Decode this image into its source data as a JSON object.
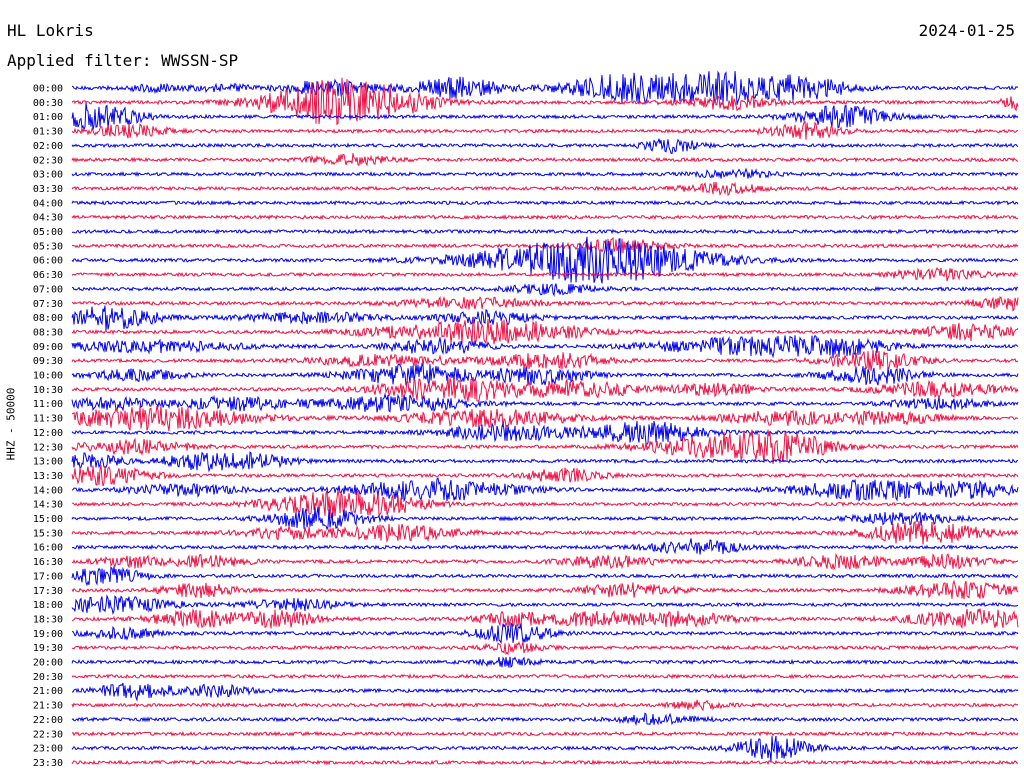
{
  "header": {
    "station": "HL Lokris",
    "date": "2024-01-25",
    "filter": "Applied filter: WWSSN-SP"
  },
  "chart_data": {
    "type": "line",
    "chart_kind": "helicorder",
    "ylabel": "HHZ - 50000",
    "row_labels": [
      "00:00",
      "00:30",
      "01:00",
      "01:30",
      "02:00",
      "02:30",
      "03:00",
      "03:30",
      "04:00",
      "04:30",
      "05:00",
      "05:30",
      "06:00",
      "06:30",
      "07:00",
      "07:30",
      "08:00",
      "08:30",
      "09:00",
      "09:30",
      "10:00",
      "10:30",
      "11:00",
      "11:30",
      "12:00",
      "12:30",
      "13:00",
      "13:30",
      "14:00",
      "14:30",
      "15:00",
      "15:30",
      "16:00",
      "16:30",
      "17:00",
      "17:30",
      "18:00",
      "18:30",
      "19:00",
      "19:30",
      "20:00",
      "20:30",
      "21:00",
      "21:30",
      "22:00",
      "22:30",
      "23:00",
      "23:30"
    ],
    "row_minutes": 15,
    "trace_colors": [
      "#0000ee",
      "#ee1144"
    ],
    "noise_amplitude": 0.25,
    "events": [
      {
        "row": 0,
        "minute": 1.3,
        "amp": 0.6,
        "dur": 0.6
      },
      {
        "row": 0,
        "minute": 2.4,
        "amp": 0.5,
        "dur": 0.6
      },
      {
        "row": 0,
        "minute": 4.1,
        "amp": 1.2,
        "dur": 1.0
      },
      {
        "row": 0,
        "minute": 6.1,
        "amp": 1.5,
        "dur": 1.0
      },
      {
        "row": 0,
        "minute": 8.7,
        "amp": 2.0,
        "dur": 1.2
      },
      {
        "row": 0,
        "minute": 10.2,
        "amp": 2.6,
        "dur": 1.2
      },
      {
        "row": 0,
        "minute": 11.6,
        "amp": 1.6,
        "dur": 1.0
      },
      {
        "row": 1,
        "minute": 4.1,
        "amp": 2.4,
        "dur": 1.6
      },
      {
        "row": 1,
        "minute": 4.7,
        "amp": 1.5,
        "dur": 1.4
      },
      {
        "row": 1,
        "minute": 10.4,
        "amp": 1.0,
        "dur": 1.0
      },
      {
        "row": 1,
        "minute": 15.0,
        "amp": 1.0,
        "dur": 0.4
      },
      {
        "row": 2,
        "minute": 0.1,
        "amp": 1.2,
        "dur": 0.8
      },
      {
        "row": 2,
        "minute": 0.6,
        "amp": 1.2,
        "dur": 0.8
      },
      {
        "row": 2,
        "minute": 12.2,
        "amp": 1.6,
        "dur": 1.0
      },
      {
        "row": 3,
        "minute": 0.9,
        "amp": 1.0,
        "dur": 0.8
      },
      {
        "row": 3,
        "minute": 11.6,
        "amp": 1.2,
        "dur": 0.8
      },
      {
        "row": 4,
        "minute": 9.5,
        "amp": 1.0,
        "dur": 0.6
      },
      {
        "row": 5,
        "minute": 4.4,
        "amp": 0.8,
        "dur": 0.8
      },
      {
        "row": 6,
        "minute": 10.5,
        "amp": 0.6,
        "dur": 0.8
      },
      {
        "row": 7,
        "minute": 10.3,
        "amp": 0.8,
        "dur": 0.8
      },
      {
        "row": 11,
        "minute": 8.7,
        "amp": 1.0,
        "dur": 1.0
      },
      {
        "row": 12,
        "minute": 7.6,
        "amp": 1.8,
        "dur": 2.2
      },
      {
        "row": 12,
        "minute": 8.8,
        "amp": 2.2,
        "dur": 2.0
      },
      {
        "row": 13,
        "minute": 13.7,
        "amp": 0.8,
        "dur": 1.0
      },
      {
        "row": 14,
        "minute": 7.6,
        "amp": 0.7,
        "dur": 1.0
      },
      {
        "row": 15,
        "minute": 6.3,
        "amp": 0.8,
        "dur": 1.4
      },
      {
        "row": 15,
        "minute": 14.9,
        "amp": 1.0,
        "dur": 0.8
      },
      {
        "row": 16,
        "minute": 0.6,
        "amp": 1.8,
        "dur": 1.0
      },
      {
        "row": 16,
        "minute": 3.8,
        "amp": 0.8,
        "dur": 1.4
      },
      {
        "row": 16,
        "minute": 6.6,
        "amp": 1.0,
        "dur": 1.0
      },
      {
        "row": 17,
        "minute": 6.0,
        "amp": 1.0,
        "dur": 2.0
      },
      {
        "row": 17,
        "minute": 7.0,
        "amp": 1.2,
        "dur": 1.6
      },
      {
        "row": 17,
        "minute": 14.2,
        "amp": 1.2,
        "dur": 1.0
      },
      {
        "row": 18,
        "minute": 1.2,
        "amp": 0.8,
        "dur": 2.0
      },
      {
        "row": 18,
        "minute": 5.8,
        "amp": 1.2,
        "dur": 1.0
      },
      {
        "row": 18,
        "minute": 10.6,
        "amp": 1.2,
        "dur": 2.0
      },
      {
        "row": 18,
        "minute": 12.1,
        "amp": 1.2,
        "dur": 1.2
      },
      {
        "row": 19,
        "minute": 5.0,
        "amp": 0.8,
        "dur": 1.6
      },
      {
        "row": 19,
        "minute": 7.6,
        "amp": 1.2,
        "dur": 1.2
      },
      {
        "row": 19,
        "minute": 12.7,
        "amp": 1.4,
        "dur": 1.0
      },
      {
        "row": 20,
        "minute": 1.0,
        "amp": 0.8,
        "dur": 1.0
      },
      {
        "row": 20,
        "minute": 5.4,
        "amp": 1.6,
        "dur": 1.4
      },
      {
        "row": 20,
        "minute": 7.4,
        "amp": 1.4,
        "dur": 1.0
      },
      {
        "row": 20,
        "minute": 12.7,
        "amp": 1.4,
        "dur": 1.0
      },
      {
        "row": 21,
        "minute": 6.0,
        "amp": 1.8,
        "dur": 1.6
      },
      {
        "row": 21,
        "minute": 8.1,
        "amp": 1.2,
        "dur": 1.2
      },
      {
        "row": 21,
        "minute": 10.2,
        "amp": 0.8,
        "dur": 1.0
      },
      {
        "row": 21,
        "minute": 13.7,
        "amp": 1.0,
        "dur": 1.4
      },
      {
        "row": 22,
        "minute": 0.6,
        "amp": 0.8,
        "dur": 1.0
      },
      {
        "row": 22,
        "minute": 2.6,
        "amp": 1.0,
        "dur": 1.2
      },
      {
        "row": 22,
        "minute": 5.1,
        "amp": 1.2,
        "dur": 1.6
      },
      {
        "row": 22,
        "minute": 13.7,
        "amp": 0.8,
        "dur": 1.0
      },
      {
        "row": 23,
        "minute": 1.3,
        "amp": 1.8,
        "dur": 2.0
      },
      {
        "row": 23,
        "minute": 6.6,
        "amp": 1.2,
        "dur": 1.8
      },
      {
        "row": 23,
        "minute": 11.3,
        "amp": 1.0,
        "dur": 1.4
      },
      {
        "row": 23,
        "minute": 13.0,
        "amp": 0.8,
        "dur": 1.2
      },
      {
        "row": 24,
        "minute": 6.9,
        "amp": 1.2,
        "dur": 1.4
      },
      {
        "row": 24,
        "minute": 9.1,
        "amp": 1.6,
        "dur": 1.2
      },
      {
        "row": 25,
        "minute": 1.0,
        "amp": 1.0,
        "dur": 1.2
      },
      {
        "row": 25,
        "minute": 10.2,
        "amp": 1.4,
        "dur": 1.6
      },
      {
        "row": 25,
        "minute": 11.2,
        "amp": 1.8,
        "dur": 1.2
      },
      {
        "row": 26,
        "minute": 0.2,
        "amp": 1.0,
        "dur": 0.8
      },
      {
        "row": 26,
        "minute": 2.0,
        "amp": 1.2,
        "dur": 0.8
      },
      {
        "row": 26,
        "minute": 2.9,
        "amp": 1.0,
        "dur": 0.8
      },
      {
        "row": 27,
        "minute": 0.5,
        "amp": 1.4,
        "dur": 1.0
      },
      {
        "row": 27,
        "minute": 7.8,
        "amp": 1.0,
        "dur": 0.8
      },
      {
        "row": 28,
        "minute": 1.8,
        "amp": 0.8,
        "dur": 1.2
      },
      {
        "row": 28,
        "minute": 5.7,
        "amp": 1.6,
        "dur": 1.8
      },
      {
        "row": 28,
        "minute": 12.6,
        "amp": 1.4,
        "dur": 1.6
      },
      {
        "row": 28,
        "minute": 14.2,
        "amp": 1.0,
        "dur": 1.2
      },
      {
        "row": 29,
        "minute": 3.9,
        "amp": 1.8,
        "dur": 1.2
      },
      {
        "row": 29,
        "minute": 5.0,
        "amp": 1.2,
        "dur": 1.0
      },
      {
        "row": 30,
        "minute": 3.9,
        "amp": 1.6,
        "dur": 1.0
      },
      {
        "row": 30,
        "minute": 13.2,
        "amp": 1.0,
        "dur": 1.0
      },
      {
        "row": 31,
        "minute": 3.4,
        "amp": 0.8,
        "dur": 1.0
      },
      {
        "row": 31,
        "minute": 5.2,
        "amp": 1.2,
        "dur": 1.2
      },
      {
        "row": 31,
        "minute": 13.5,
        "amp": 1.8,
        "dur": 1.2
      },
      {
        "row": 32,
        "minute": 9.9,
        "amp": 1.2,
        "dur": 1.0
      },
      {
        "row": 33,
        "minute": 1.0,
        "amp": 0.8,
        "dur": 0.8
      },
      {
        "row": 33,
        "minute": 2.2,
        "amp": 0.9,
        "dur": 0.8
      },
      {
        "row": 33,
        "minute": 8.5,
        "amp": 0.8,
        "dur": 1.0
      },
      {
        "row": 33,
        "minute": 12.2,
        "amp": 1.0,
        "dur": 1.0
      },
      {
        "row": 33,
        "minute": 13.9,
        "amp": 1.0,
        "dur": 0.8
      },
      {
        "row": 34,
        "minute": 0.5,
        "amp": 1.4,
        "dur": 0.8
      },
      {
        "row": 35,
        "minute": 2.0,
        "amp": 1.0,
        "dur": 0.8
      },
      {
        "row": 35,
        "minute": 8.8,
        "amp": 1.0,
        "dur": 1.0
      },
      {
        "row": 35,
        "minute": 14.1,
        "amp": 1.2,
        "dur": 1.2
      },
      {
        "row": 36,
        "minute": 0.6,
        "amp": 1.2,
        "dur": 1.4
      },
      {
        "row": 36,
        "minute": 3.5,
        "amp": 0.8,
        "dur": 1.0
      },
      {
        "row": 37,
        "minute": 2.0,
        "amp": 1.2,
        "dur": 1.0
      },
      {
        "row": 37,
        "minute": 3.3,
        "amp": 1.2,
        "dur": 0.8
      },
      {
        "row": 37,
        "minute": 7.0,
        "amp": 1.0,
        "dur": 0.8
      },
      {
        "row": 37,
        "minute": 8.3,
        "amp": 1.0,
        "dur": 1.0
      },
      {
        "row": 37,
        "minute": 9.7,
        "amp": 1.2,
        "dur": 1.0
      },
      {
        "row": 37,
        "minute": 14.5,
        "amp": 1.4,
        "dur": 1.6
      },
      {
        "row": 38,
        "minute": 0.8,
        "amp": 0.8,
        "dur": 0.8
      },
      {
        "row": 38,
        "minute": 7.0,
        "amp": 1.4,
        "dur": 0.8
      },
      {
        "row": 39,
        "minute": 7.0,
        "amp": 0.8,
        "dur": 0.6
      },
      {
        "row": 40,
        "minute": 6.9,
        "amp": 0.6,
        "dur": 0.6
      },
      {
        "row": 42,
        "minute": 1.0,
        "amp": 1.2,
        "dur": 0.8
      },
      {
        "row": 42,
        "minute": 2.3,
        "amp": 0.8,
        "dur": 0.8
      },
      {
        "row": 43,
        "minute": 9.9,
        "amp": 0.6,
        "dur": 0.6
      },
      {
        "row": 44,
        "minute": 9.3,
        "amp": 0.8,
        "dur": 0.8
      },
      {
        "row": 46,
        "minute": 11.1,
        "amp": 1.8,
        "dur": 0.8
      }
    ]
  }
}
